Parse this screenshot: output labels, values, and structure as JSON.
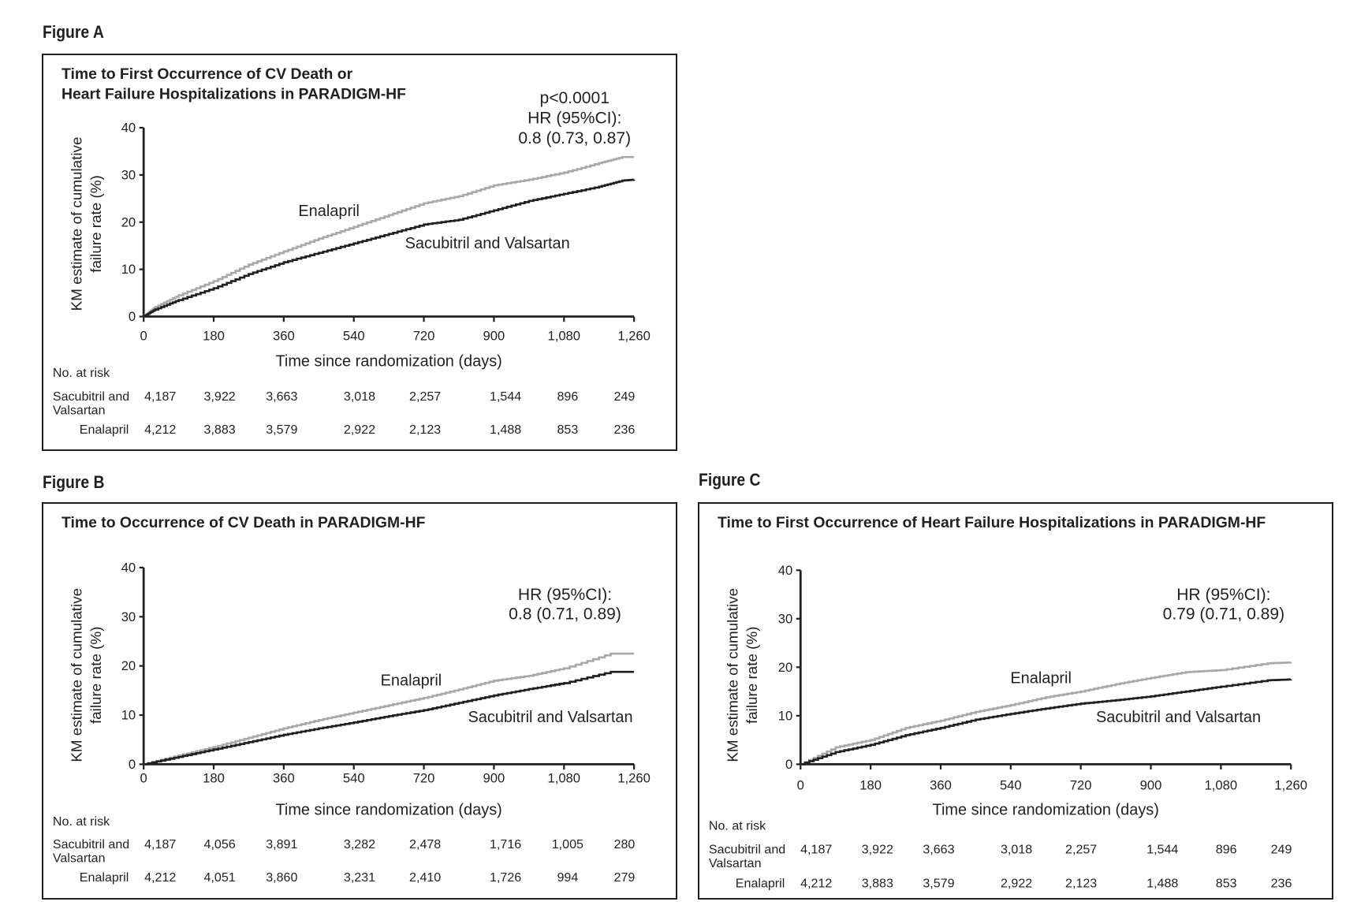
{
  "figures": [
    {
      "label": "Figure A",
      "title_lines": [
        "Time to First Occurrence of CV Death or",
        "Heart Failure Hospitalizations in PARADIGM-HF"
      ],
      "stats_lines": [
        "p<0.0001",
        "HR (95%CI):",
        "0.8 (0.73, 0.87)"
      ],
      "ylabel_lines": [
        "KM estimate of cumulative",
        "failure rate (%)"
      ],
      "xlabel": "Time since randomization (days)",
      "yticks": [
        "0",
        "10",
        "20",
        "30",
        "40"
      ],
      "xticks": [
        "0",
        "180",
        "360",
        "540",
        "720",
        "900",
        "1,080",
        "1,260"
      ],
      "risk": {
        "header": "No. at risk",
        "rows": [
          {
            "name_lines": [
              "Sacubitril and",
              "Valsartan"
            ],
            "values": [
              "4,187",
              "3,922",
              "3,663",
              "3,018",
              "2,257",
              "1,544",
              "896",
              "249"
            ]
          },
          {
            "name_lines": [
              "Enalapril"
            ],
            "values": [
              "4,212",
              "3,883",
              "3,579",
              "2,922",
              "2,123",
              "1,488",
              "853",
              "236"
            ]
          }
        ]
      }
    },
    {
      "label": "Figure B",
      "title_lines": [
        "Time to Occurrence of CV Death in PARADIGM-HF"
      ],
      "stats_lines": [
        "HR (95%CI):",
        "0.8 (0.71, 0.89)"
      ],
      "ylabel_lines": [
        "KM estimate of cumulative",
        "failure rate (%)"
      ],
      "xlabel": "Time since randomization (days)",
      "yticks": [
        "0",
        "10",
        "20",
        "30",
        "40"
      ],
      "xticks": [
        "0",
        "180",
        "360",
        "540",
        "720",
        "900",
        "1,080",
        "1,260"
      ],
      "risk": {
        "header": "No. at risk",
        "rows": [
          {
            "name_lines": [
              "Sacubitril and",
              "Valsartan"
            ],
            "values": [
              "4,187",
              "4,056",
              "3,891",
              "3,282",
              "2,478",
              "1,716",
              "1,005",
              "280"
            ]
          },
          {
            "name_lines": [
              "Enalapril"
            ],
            "values": [
              "4,212",
              "4,051",
              "3,860",
              "3,231",
              "2,410",
              "1,726",
              "994",
              "279"
            ]
          }
        ]
      }
    },
    {
      "label": "Figure C",
      "title_lines": [
        "Time to First Occurrence of Heart Failure Hospitalizations in PARADIGM-HF"
      ],
      "stats_lines": [
        "HR (95%CI):",
        "0.79 (0.71, 0.89)"
      ],
      "ylabel_lines": [
        "KM estimate of cumulative",
        "failure rate (%)"
      ],
      "xlabel": "Time since randomization (days)",
      "yticks": [
        "0",
        "10",
        "20",
        "30",
        "40"
      ],
      "xticks": [
        "0",
        "180",
        "360",
        "540",
        "720",
        "900",
        "1,080",
        "1,260"
      ],
      "risk": {
        "header": "No. at risk",
        "rows": [
          {
            "name_lines": [
              "Sacubitril and",
              "Valsartan"
            ],
            "values": [
              "4,187",
              "3,922",
              "3,663",
              "3,018",
              "2,257",
              "1,544",
              "896",
              "249"
            ]
          },
          {
            "name_lines": [
              "Enalapril"
            ],
            "values": [
              "4,212",
              "3,883",
              "3,579",
              "2,922",
              "2,123",
              "1,488",
              "853",
              "236"
            ]
          }
        ]
      }
    }
  ],
  "chart_data": [
    {
      "type": "line",
      "title": "Time to First Occurrence of CV Death or Heart Failure Hospitalizations in PARADIGM-HF",
      "xlabel": "Time since randomization (days)",
      "ylabel": "KM estimate of cumulative failure rate (%)",
      "xlim": [
        0,
        1260
      ],
      "ylim": [
        0,
        40
      ],
      "series": [
        {
          "name": "Enalapril",
          "color": "#a7a9ac",
          "x": [
            0,
            30,
            90,
            180,
            270,
            360,
            450,
            540,
            630,
            720,
            810,
            900,
            990,
            1080,
            1170,
            1230,
            1260
          ],
          "y": [
            0,
            2,
            4.5,
            7.5,
            11,
            13.8,
            16.5,
            19,
            21.5,
            24,
            25.5,
            27.8,
            29,
            30.5,
            32.5,
            33.8,
            33.8
          ]
        },
        {
          "name": "Sacubitril and Valsartan",
          "color": "#231f20",
          "x": [
            0,
            30,
            90,
            180,
            270,
            360,
            450,
            540,
            630,
            720,
            810,
            900,
            990,
            1080,
            1170,
            1230,
            1260
          ],
          "y": [
            0,
            1.5,
            3.5,
            6,
            9,
            11.5,
            13.5,
            15.5,
            17.5,
            19.5,
            20.5,
            22.5,
            24.5,
            26,
            27.5,
            28.8,
            29
          ]
        }
      ]
    },
    {
      "type": "line",
      "title": "Time to Occurrence of CV Death in PARADIGM-HF",
      "xlabel": "Time since randomization (days)",
      "ylabel": "KM estimate of cumulative failure rate (%)",
      "xlim": [
        0,
        1260
      ],
      "ylim": [
        0,
        40
      ],
      "series": [
        {
          "name": "Enalapril",
          "color": "#a7a9ac",
          "x": [
            0,
            90,
            180,
            270,
            360,
            450,
            540,
            630,
            720,
            810,
            900,
            990,
            1080,
            1200,
            1260
          ],
          "y": [
            0,
            1.8,
            3.5,
            5.4,
            7.3,
            9,
            10.5,
            12,
            13.5,
            15.2,
            17,
            18,
            19.5,
            22.5,
            22.5
          ]
        },
        {
          "name": "Sacubitril and Valsartan",
          "color": "#231f20",
          "x": [
            0,
            90,
            180,
            270,
            360,
            450,
            540,
            630,
            720,
            810,
            900,
            990,
            1080,
            1200,
            1260
          ],
          "y": [
            0,
            1.5,
            3,
            4.5,
            6,
            7.3,
            8.5,
            9.8,
            11,
            12.5,
            14,
            15.3,
            16.5,
            18.8,
            18.8
          ]
        }
      ]
    },
    {
      "type": "line",
      "title": "Time to First Occurrence of Heart Failure Hospitalizations in PARADIGM-HF",
      "xlabel": "Time since randomization (days)",
      "ylabel": "KM estimate of cumulative failure rate (%)",
      "xlim": [
        0,
        1260
      ],
      "ylim": [
        0,
        40
      ],
      "series": [
        {
          "name": "Enalapril",
          "color": "#a7a9ac",
          "x": [
            0,
            90,
            180,
            270,
            360,
            450,
            540,
            630,
            720,
            810,
            900,
            990,
            1080,
            1200,
            1260
          ],
          "y": [
            0,
            3.5,
            5,
            7.5,
            9,
            10.8,
            12.2,
            13.8,
            15,
            16.5,
            17.8,
            19,
            19.4,
            20.8,
            21
          ]
        },
        {
          "name": "Sacubitril and Valsartan",
          "color": "#231f20",
          "x": [
            0,
            90,
            180,
            270,
            360,
            450,
            540,
            630,
            720,
            810,
            900,
            990,
            1080,
            1200,
            1260
          ],
          "y": [
            0,
            2.5,
            4,
            6,
            7.5,
            9.2,
            10.4,
            11.5,
            12.5,
            13.2,
            14,
            15,
            16,
            17.3,
            17.5
          ]
        }
      ]
    }
  ]
}
